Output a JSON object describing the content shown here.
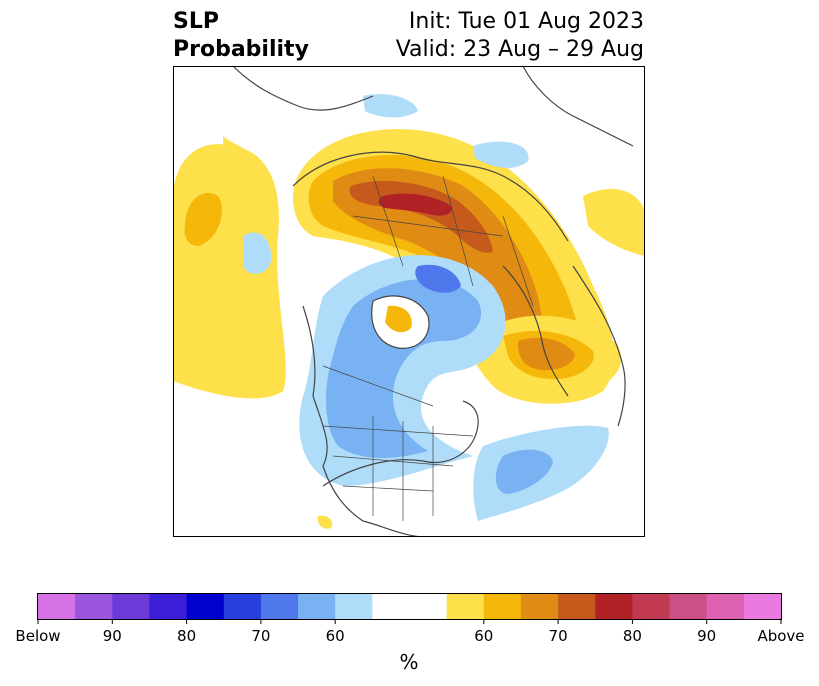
{
  "title": {
    "left_line1": "SLP",
    "left_line2": "Probability",
    "right_line1": "Init: Tue 01 Aug 2023",
    "right_line2": "Valid: 23 Aug – 29 Aug"
  },
  "map": {
    "projection": "north-polar-stereographic",
    "shown_field": "SLP tercile probability",
    "features": [
      {
        "name": "above-normal-core",
        "region": "Siberia / Arctic coast",
        "max_category": "75-80"
      },
      {
        "name": "above-normal-europe",
        "region": "Scandinavia / Europe",
        "max_category": "65-70"
      },
      {
        "name": "above-normal-pacific",
        "region": "North Pacific",
        "max_category": "55-60"
      },
      {
        "name": "below-normal-canada",
        "region": "Canada / Arctic Ocean",
        "max_category": "60-65"
      },
      {
        "name": "below-normal-atlantic",
        "region": "North Atlantic",
        "max_category": "60-65"
      }
    ]
  },
  "colorbar": {
    "unit": "%",
    "tick_labels": [
      "Below",
      "90",
      "80",
      "70",
      "60",
      "60",
      "70",
      "80",
      "90",
      "Above"
    ],
    "below_colors": [
      "#d672e6",
      "#9b56de",
      "#6c3ad8",
      "#3a1fd6",
      "#0000cf",
      "#2a3fe0",
      "#4f78ec",
      "#78b2f2",
      "#afdcf8"
    ],
    "neutral_color": "#ffffff",
    "above_colors": [
      "#fde04a",
      "#f4b70a",
      "#df8b14",
      "#c65a1c",
      "#b02226",
      "#c23a52",
      "#cc4f85",
      "#de62b2",
      "#ea7ae0"
    ]
  }
}
